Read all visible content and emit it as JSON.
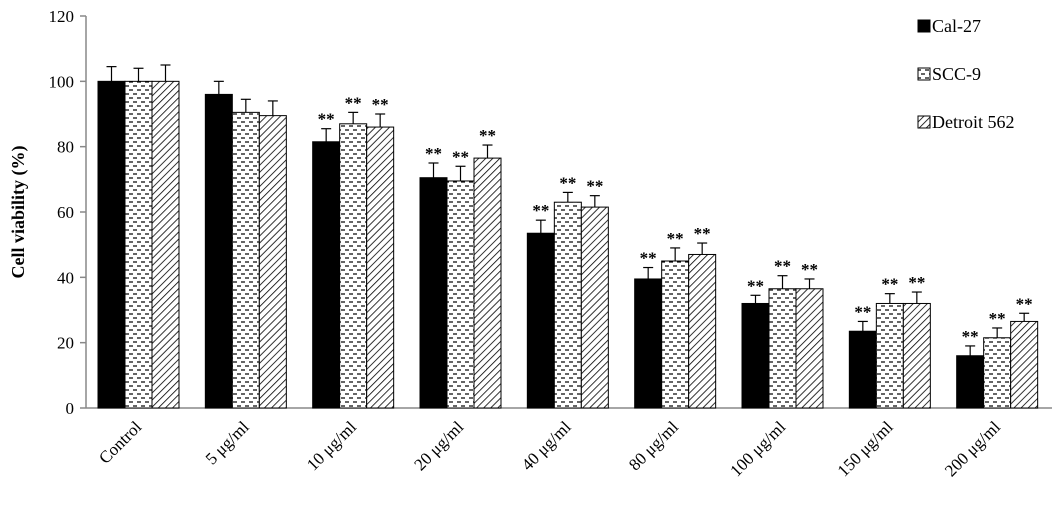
{
  "chart_data": {
    "type": "bar",
    "title": "",
    "xlabel": "",
    "ylabel": "Cell viability  (%)",
    "ylim": [
      0,
      120
    ],
    "yticks": [
      0,
      20,
      40,
      60,
      80,
      100,
      120
    ],
    "grid": false,
    "legend_position": "top-right",
    "categories": [
      "Control",
      "5 μg/ml",
      "10 μg/ml",
      "20 μg/ml",
      "40 μg/ml",
      "80 μg/ml",
      "100 μg/ml",
      "150 μg/ml",
      "200 μg/ml"
    ],
    "series": [
      {
        "name": "Cal-27",
        "pattern": "solid",
        "values": [
          100,
          96,
          81.5,
          70.5,
          53.5,
          39.5,
          32,
          23.5,
          16
        ],
        "errors": [
          4.5,
          4,
          4,
          4.5,
          4,
          3.5,
          2.5,
          3,
          3
        ],
        "significance": [
          "",
          "",
          "**",
          "**",
          "**",
          "**",
          "**",
          "**",
          "**"
        ]
      },
      {
        "name": "SCC-9",
        "pattern": "dashes",
        "values": [
          100,
          90.5,
          87,
          69.5,
          63,
          45,
          36.5,
          32,
          21.5
        ],
        "errors": [
          4,
          4,
          3.5,
          4.5,
          3,
          4,
          4,
          3,
          3
        ],
        "significance": [
          "",
          "",
          "**",
          "**",
          "**",
          "**",
          "**",
          "**",
          "**"
        ]
      },
      {
        "name": "Detroit 562",
        "pattern": "diagonal",
        "values": [
          100,
          89.5,
          86,
          76.5,
          61.5,
          47,
          36.5,
          32,
          26.5
        ],
        "errors": [
          5,
          4.5,
          4,
          4,
          3.5,
          3.5,
          3,
          3.5,
          2.5
        ],
        "significance": [
          "",
          "",
          "**",
          "**",
          "**",
          "**",
          "**",
          "**",
          "**"
        ]
      }
    ]
  }
}
